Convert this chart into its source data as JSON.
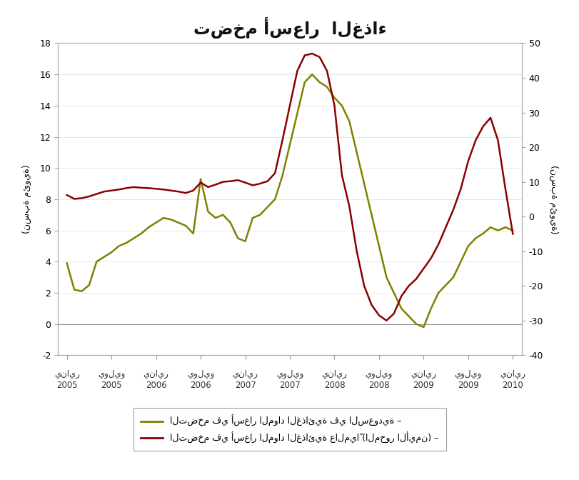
{
  "title": "تضخم أسعار  الغذاء",
  "ylabel_left": "(نسبة مئوية)",
  "ylabel_right": "(نسبة مئوية)",
  "legend_saudi": "التضخم في أسعار المواد الغذائية في السعودية –",
  "legend_world": "التضخم في أسعار المواد الغذائية عالمياً (المحور الأيمن) –",
  "color_saudi": "#808000",
  "color_world": "#8B0000",
  "ylim_left": [
    -2,
    18
  ],
  "ylim_right": [
    -40,
    50
  ],
  "yticks_left": [
    -2,
    0,
    2,
    4,
    6,
    8,
    10,
    12,
    14,
    16,
    18
  ],
  "yticks_right": [
    -40,
    -30,
    -20,
    -10,
    0,
    10,
    20,
    30,
    40,
    50
  ],
  "background_color": "#ffffff",
  "x_tick_labels_arabic": [
    "يناير",
    "يوليو",
    "يناير",
    "يوليو",
    "يناير",
    "يوليو",
    "يناير",
    "يوليو",
    "يناير",
    "يوليو",
    "يناير"
  ],
  "x_tick_labels_year": [
    "2005",
    "2005",
    "2006",
    "2006",
    "2007",
    "2007",
    "2008",
    "2008",
    "2009",
    "2009",
    "2010"
  ],
  "saudi_data": [
    3.9,
    2.2,
    2.1,
    2.5,
    4.0,
    4.3,
    4.6,
    5.0,
    5.2,
    5.5,
    5.8,
    6.2,
    6.5,
    6.8,
    6.7,
    6.5,
    6.3,
    5.8,
    9.3,
    7.2,
    6.8,
    7.0,
    6.5,
    5.5,
    5.3,
    6.8,
    7.0,
    7.5,
    8.0,
    9.5,
    11.5,
    13.5,
    15.5,
    16.0,
    15.5,
    15.2,
    14.5,
    14.0,
    13.0,
    11.0,
    9.0,
    7.0,
    5.0,
    3.0,
    2.0,
    1.0,
    0.5,
    0.0,
    -0.2,
    1.0,
    2.0,
    2.5,
    3.0,
    4.0,
    5.0,
    5.5,
    5.8,
    6.2,
    6.0,
    6.2,
    6.0
  ],
  "world_data": [
    6.2,
    5.1,
    5.3,
    5.8,
    6.5,
    7.2,
    7.5,
    7.8,
    8.2,
    8.5,
    8.3,
    8.2,
    8.0,
    7.8,
    7.5,
    7.2,
    6.8,
    7.5,
    9.8,
    8.5,
    9.2,
    10.0,
    10.2,
    10.5,
    9.8,
    9.0,
    9.5,
    10.2,
    12.5,
    22.0,
    32.0,
    42.0,
    46.5,
    47.0,
    46.0,
    42.0,
    32.0,
    12.0,
    3.0,
    -10.0,
    -20.0,
    -25.5,
    -28.5,
    -30.0,
    -28.0,
    -23.0,
    -20.0,
    -18.0,
    -15.0,
    -12.0,
    -8.0,
    -3.0,
    2.0,
    8.0,
    16.0,
    22.0,
    26.0,
    28.5,
    22.0,
    8.0,
    -5.0
  ]
}
